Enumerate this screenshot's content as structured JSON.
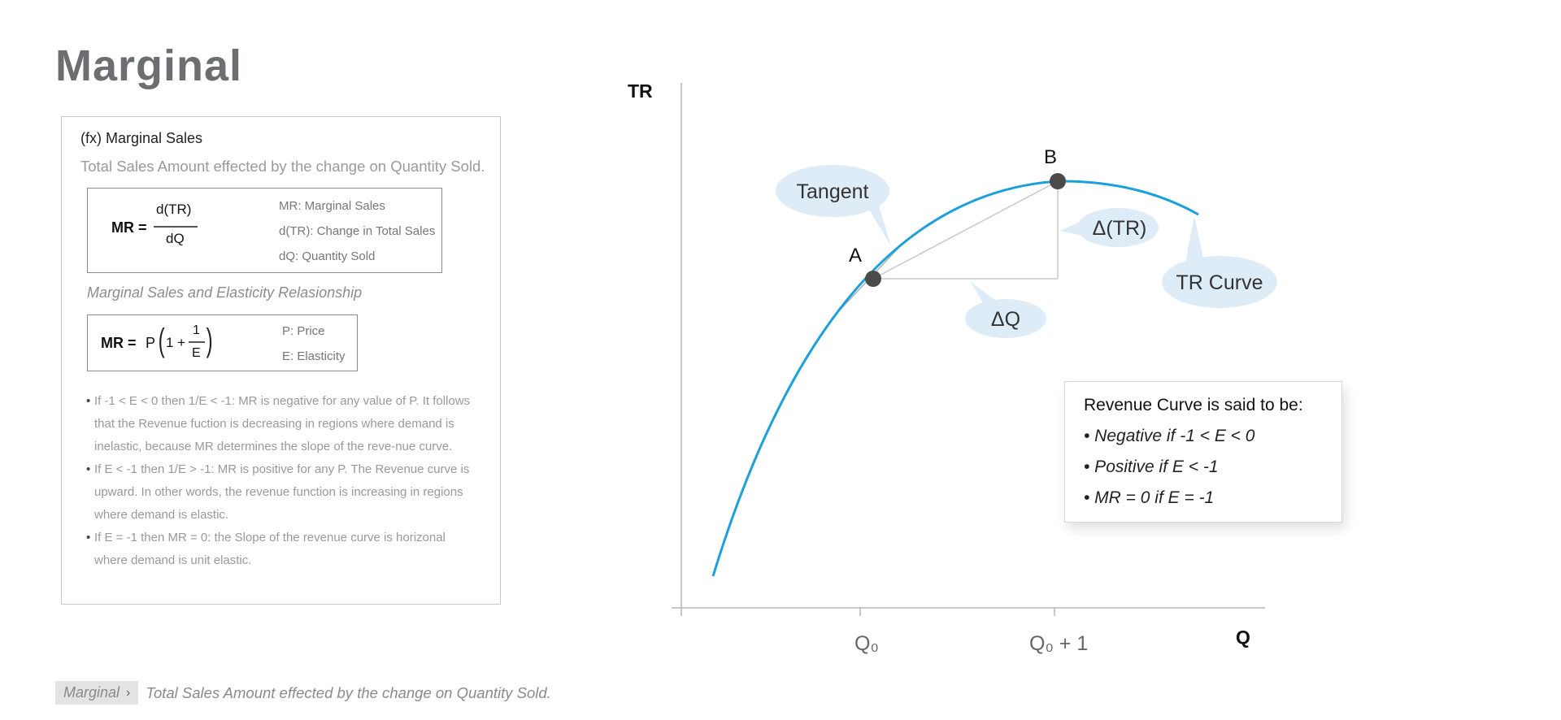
{
  "page": {
    "title": "Marginal"
  },
  "card": {
    "title": "(fx) Marginal Sales",
    "subtitle": "Total Sales Amount effected by the change on Quantity Sold.",
    "formula1": {
      "lhs": "MR =",
      "numerator": "d(TR)",
      "denominator": "dQ",
      "legend": [
        "MR: Marginal Sales",
        "d(TR): Change in Total Sales",
        "dQ: Quantity Sold"
      ]
    },
    "relationship_title": "Marginal Sales and Elasticity Relasionship",
    "formula2": {
      "lhs": "MR =",
      "p": "P",
      "open_paren": "(",
      "one_plus": "1 +",
      "numerator": "1",
      "denominator": "E",
      "close_paren": ")",
      "legend": [
        "P: Price",
        "E: Elasticity"
      ]
    },
    "bullets": [
      "If -1 < E < 0 then 1/E < -1: MR is negative for any value of P. It follows that the Revenue fuction is decreasing in regions where demand is inelastic, because MR determines the slope of the reve-nue curve.",
      "If E < -1 then 1/E > -1: MR is positive for any P. The Revenue curve is upward. In other words, the revenue function is increasing in regions where demand is elastic.",
      "If E = -1 then MR = 0: the Slope of the revenue curve is horizonal where demand is unit elastic."
    ]
  },
  "diagram": {
    "y_axis_label": "TR",
    "x_axis_label": "Q",
    "x_ticks": [
      "Q₀",
      "Q₀ + 1"
    ],
    "point_a": "A",
    "point_b": "B",
    "callouts": {
      "tangent": "Tangent",
      "delta_tr": "Δ(TR)",
      "delta_q": "ΔQ",
      "tr_curve": "TR Curve"
    },
    "colors": {
      "curve": "#1ba0db",
      "bubble": "#deecf8",
      "point": "#4a4a4a",
      "guide": "#c8c8c8"
    }
  },
  "revenue_box": {
    "title": "Revenue Curve is said to be:",
    "items": [
      "• Negative if -1 < E < 0",
      "• Positive if E < -1",
      "• MR = 0 if E = -1"
    ]
  },
  "breadcrumb": {
    "chip": "Marginal",
    "text": "Total Sales Amount effected by the change on Quantity Sold."
  }
}
